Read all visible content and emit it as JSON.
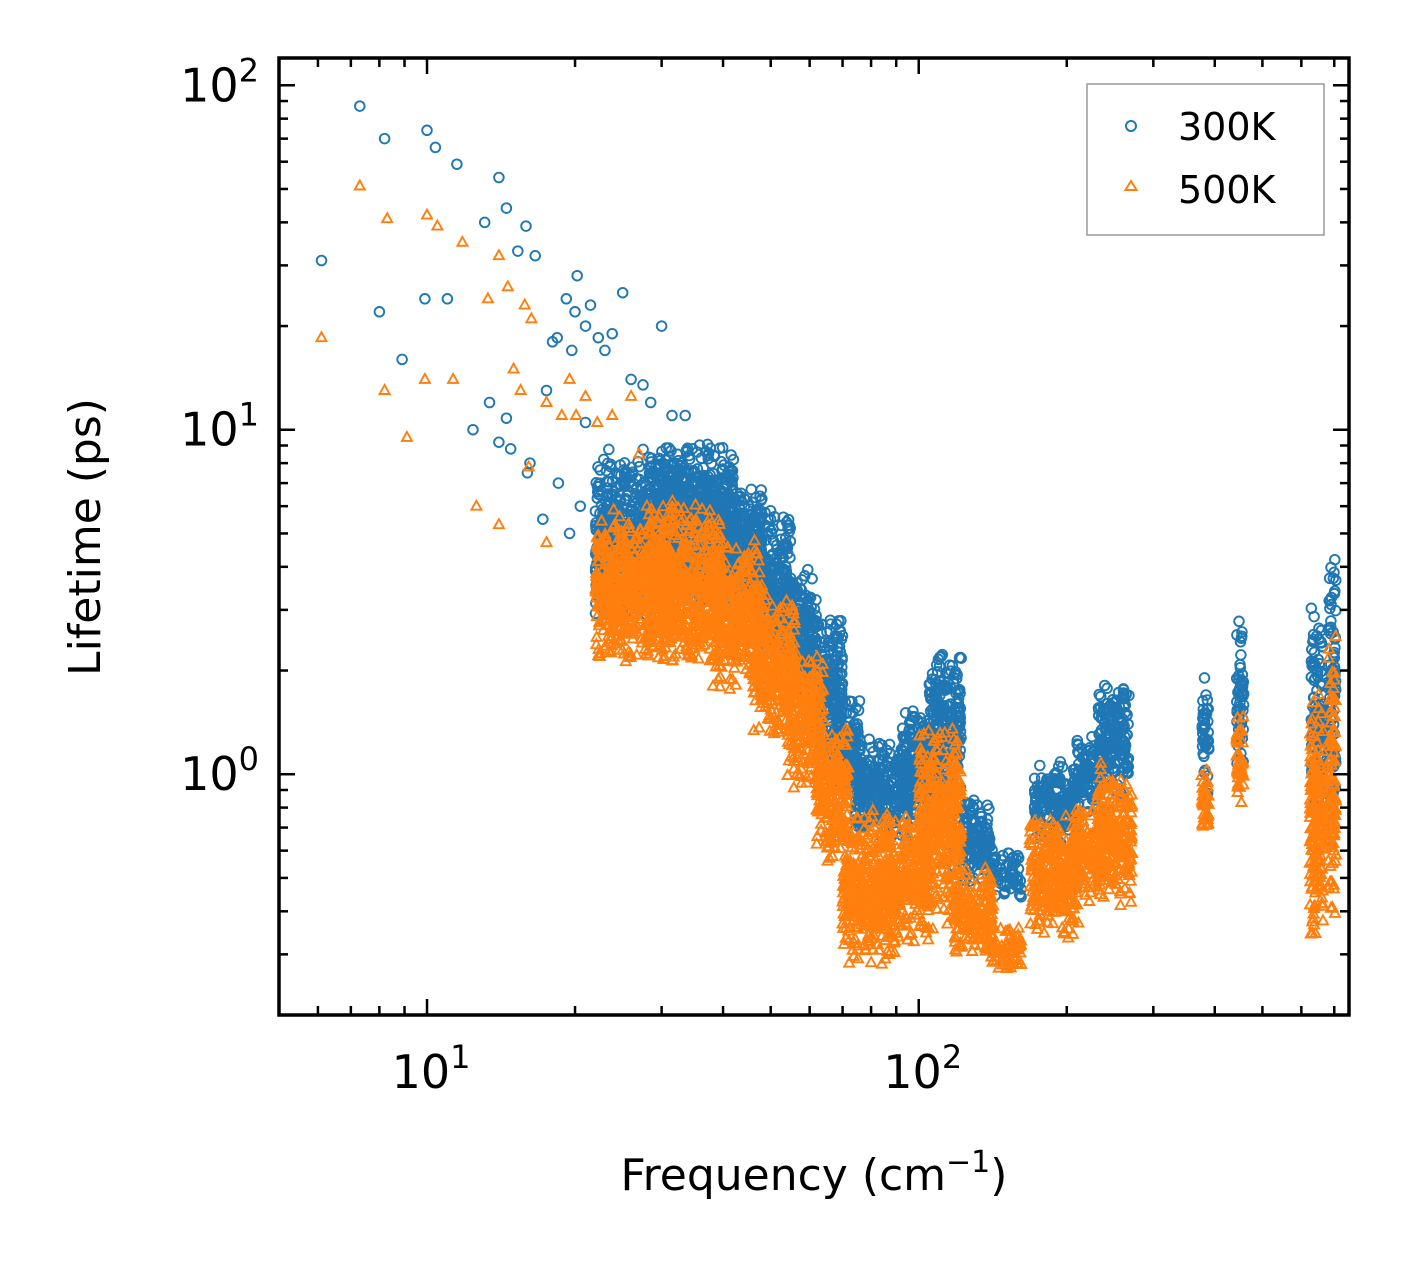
{
  "chart_data": {
    "type": "scatter",
    "title": "",
    "xlabel": "Frequency (cm",
    "xlabel_sup": "−1",
    "xlabel_suffix": ")",
    "ylabel": "Lifetime (ps)",
    "xscale": "log",
    "yscale": "log",
    "xlim": [
      5,
      750
    ],
    "ylim": [
      0.2,
      120
    ],
    "x_ticks": [
      {
        "value": 10,
        "base": "10",
        "exp": "1"
      },
      {
        "value": 100,
        "base": "10",
        "exp": "2"
      }
    ],
    "y_ticks": [
      {
        "value": 1,
        "base": "10",
        "exp": "0"
      },
      {
        "value": 10,
        "base": "10",
        "exp": "1"
      },
      {
        "value": 100,
        "base": "10",
        "exp": "2"
      }
    ],
    "legend_position": "top-right",
    "series": [
      {
        "name": "300K",
        "marker": "circle",
        "color": "#1f77b4",
        "points": [
          [
            6.1,
            31
          ],
          [
            7.3,
            87
          ],
          [
            8.2,
            70
          ],
          [
            8.0,
            22
          ],
          [
            8.9,
            16
          ],
          [
            9.9,
            24
          ],
          [
            10.0,
            74
          ],
          [
            10.4,
            66
          ],
          [
            11.0,
            24
          ],
          [
            11.5,
            59
          ],
          [
            12.4,
            10
          ],
          [
            13.1,
            40
          ],
          [
            13.4,
            12
          ],
          [
            14.0,
            54
          ],
          [
            14.5,
            44
          ],
          [
            14.0,
            9.2
          ],
          [
            14.5,
            10.8
          ],
          [
            14.8,
            8.8
          ],
          [
            15.3,
            33
          ],
          [
            15.9,
            39
          ],
          [
            16.2,
            8
          ],
          [
            16.6,
            32
          ],
          [
            16.0,
            7.5
          ],
          [
            17.5,
            13
          ],
          [
            18.0,
            18
          ],
          [
            18.4,
            18.5
          ],
          [
            19.2,
            24
          ],
          [
            19.7,
            17
          ],
          [
            20.2,
            28
          ],
          [
            20.0,
            22
          ],
          [
            21.0,
            20
          ],
          [
            21.5,
            23
          ],
          [
            21.0,
            10.5
          ],
          [
            22.3,
            18.5
          ],
          [
            23.0,
            17
          ],
          [
            23.8,
            19
          ],
          [
            25.0,
            25
          ],
          [
            26.0,
            14
          ],
          [
            27.5,
            13.5
          ],
          [
            28.5,
            12
          ],
          [
            30.0,
            20
          ],
          [
            31.5,
            11
          ],
          [
            33.5,
            11
          ],
          [
            17.2,
            5.5
          ],
          [
            18.5,
            7
          ],
          [
            19.5,
            5
          ],
          [
            20.5,
            6
          ],
          [
            22.0,
            5.8
          ],
          [
            24.5,
            5.5
          ]
        ],
        "bands": [
          {
            "x0": 22,
            "x1": 35,
            "y0": 2.8,
            "y1": 9.0
          },
          {
            "x0": 28,
            "x1": 42,
            "y0": 3.0,
            "y1": 9.5
          },
          {
            "x0": 35,
            "x1": 48,
            "y0": 2.9,
            "y1": 7.5
          },
          {
            "x0": 42,
            "x1": 55,
            "y0": 2.3,
            "y1": 6.0
          },
          {
            "x0": 50,
            "x1": 62,
            "y0": 1.8,
            "y1": 4.0
          },
          {
            "x0": 58,
            "x1": 70,
            "y0": 1.2,
            "y1": 3.0
          },
          {
            "x0": 66,
            "x1": 76,
            "y0": 0.8,
            "y1": 1.8
          },
          {
            "x0": 74,
            "x1": 96,
            "y0": 0.62,
            "y1": 1.3
          },
          {
            "x0": 92,
            "x1": 110,
            "y0": 0.7,
            "y1": 1.6
          },
          {
            "x0": 105,
            "x1": 122,
            "y0": 0.8,
            "y1": 2.4
          },
          {
            "x0": 118,
            "x1": 140,
            "y0": 0.48,
            "y1": 0.9
          },
          {
            "x0": 140,
            "x1": 162,
            "y0": 0.43,
            "y1": 0.62
          },
          {
            "x0": 172,
            "x1": 212,
            "y0": 0.62,
            "y1": 1.12
          },
          {
            "x0": 208,
            "x1": 235,
            "y0": 0.75,
            "y1": 1.3
          },
          {
            "x0": 232,
            "x1": 268,
            "y0": 0.85,
            "y1": 1.9
          },
          {
            "x0": 377,
            "x1": 389,
            "y0": 0.8,
            "y1": 2.0
          },
          {
            "x0": 443,
            "x1": 458,
            "y0": 0.95,
            "y1": 3.0
          },
          {
            "x0": 628,
            "x1": 665,
            "y0": 0.65,
            "y1": 3.3
          },
          {
            "x0": 682,
            "x1": 705,
            "y0": 0.75,
            "y1": 4.4
          }
        ]
      },
      {
        "name": "500K",
        "marker": "triangle",
        "color": "#ff7f0e",
        "points": [
          [
            6.1,
            18.5
          ],
          [
            7.3,
            51
          ],
          [
            8.2,
            13
          ],
          [
            8.3,
            41
          ],
          [
            9.1,
            9.5
          ],
          [
            9.9,
            14
          ],
          [
            10.0,
            42
          ],
          [
            10.5,
            39
          ],
          [
            11.3,
            14
          ],
          [
            11.8,
            35
          ],
          [
            12.6,
            6
          ],
          [
            13.3,
            24
          ],
          [
            14.0,
            32
          ],
          [
            14.0,
            5.3
          ],
          [
            14.6,
            26
          ],
          [
            15.0,
            15
          ],
          [
            15.5,
            13
          ],
          [
            15.8,
            23
          ],
          [
            16.3,
            21
          ],
          [
            16.1,
            7.8
          ],
          [
            17.5,
            12
          ],
          [
            17.5,
            4.7
          ],
          [
            18.8,
            11
          ],
          [
            19.5,
            14
          ],
          [
            20.1,
            11
          ],
          [
            21.0,
            12.5
          ],
          [
            22.2,
            10.5
          ],
          [
            22.5,
            4.3
          ],
          [
            23.8,
            11
          ],
          [
            24.5,
            3.5
          ],
          [
            26.0,
            12.5
          ],
          [
            27.0,
            8.5
          ],
          [
            28.0,
            6
          ]
        ],
        "bands": [
          {
            "x0": 22,
            "x1": 32,
            "y0": 2.0,
            "y1": 6.0
          },
          {
            "x0": 28,
            "x1": 40,
            "y0": 2.0,
            "y1": 6.3
          },
          {
            "x0": 38,
            "x1": 48,
            "y0": 1.7,
            "y1": 4.8
          },
          {
            "x0": 46,
            "x1": 56,
            "y0": 1.25,
            "y1": 3.4
          },
          {
            "x0": 54,
            "x1": 64,
            "y0": 0.9,
            "y1": 2.4
          },
          {
            "x0": 62,
            "x1": 72,
            "y0": 0.55,
            "y1": 1.5
          },
          {
            "x0": 70,
            "x1": 90,
            "y0": 0.27,
            "y1": 0.82
          },
          {
            "x0": 86,
            "x1": 105,
            "y0": 0.32,
            "y1": 0.8
          },
          {
            "x0": 100,
            "x1": 122,
            "y0": 0.35,
            "y1": 1.4
          },
          {
            "x0": 118,
            "x1": 142,
            "y0": 0.29,
            "y1": 0.55
          },
          {
            "x0": 140,
            "x1": 162,
            "y0": 0.26,
            "y1": 0.38
          },
          {
            "x0": 168,
            "x1": 212,
            "y0": 0.33,
            "y1": 0.78
          },
          {
            "x0": 205,
            "x1": 235,
            "y0": 0.42,
            "y1": 0.82
          },
          {
            "x0": 230,
            "x1": 272,
            "y0": 0.4,
            "y1": 1.1
          },
          {
            "x0": 376,
            "x1": 389,
            "y0": 0.67,
            "y1": 1.05
          },
          {
            "x0": 443,
            "x1": 458,
            "y0": 0.68,
            "y1": 1.6
          },
          {
            "x0": 624,
            "x1": 665,
            "y0": 0.3,
            "y1": 1.9
          },
          {
            "x0": 680,
            "x1": 706,
            "y0": 0.38,
            "y1": 2.7
          }
        ]
      }
    ]
  }
}
